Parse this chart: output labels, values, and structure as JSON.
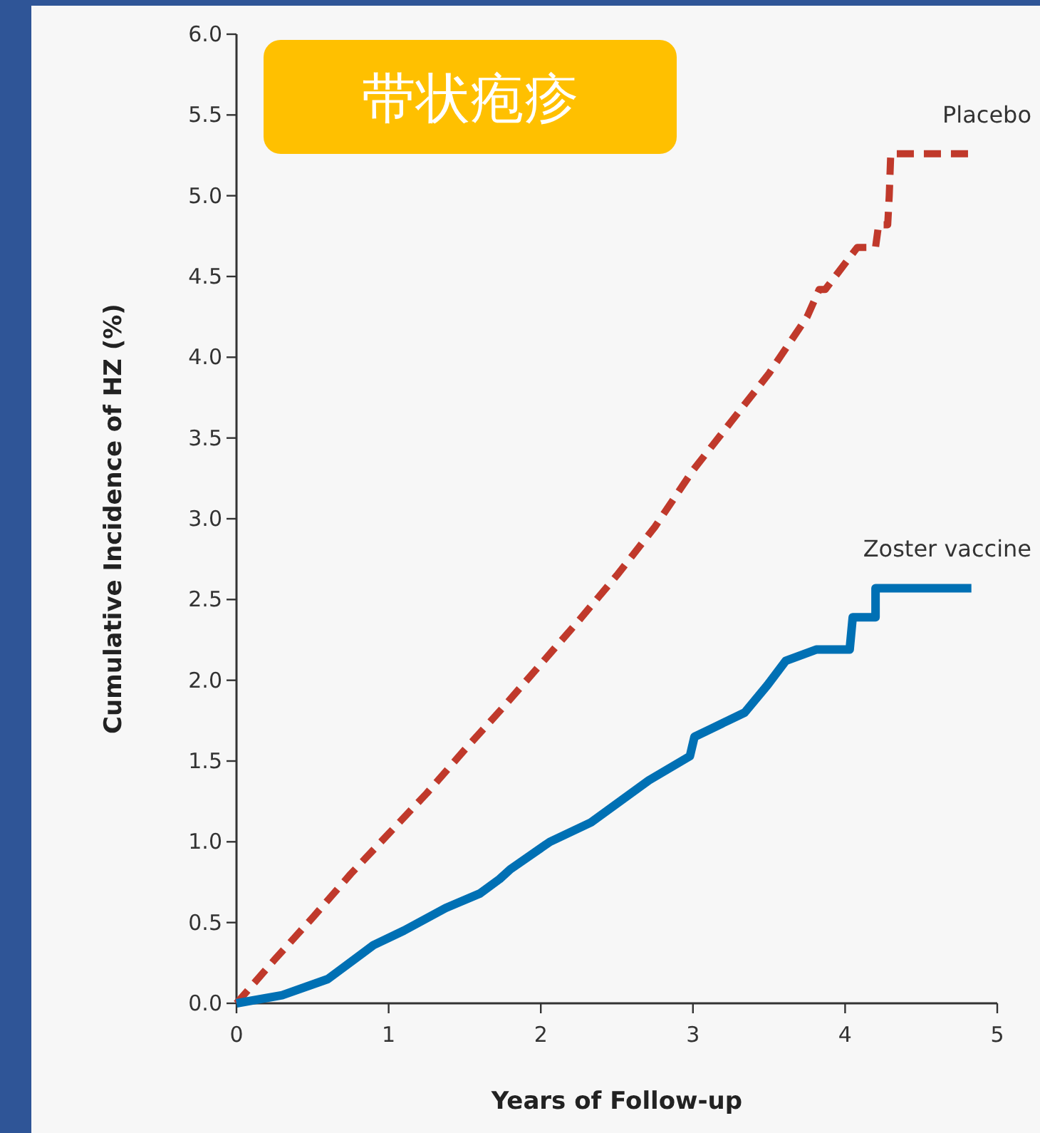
{
  "chart_data": {
    "type": "line",
    "title": "带状疱疹",
    "xlabel": "Years of Follow-up",
    "ylabel": "Cumulative Incidence of HZ (%)",
    "xlim": [
      0,
      5
    ],
    "ylim": [
      0,
      6
    ],
    "xticks": [
      0,
      1,
      2,
      3,
      4,
      5
    ],
    "yticks": [
      {
        "value": 0,
        "label": "0.0"
      },
      {
        "value": 0.5,
        "label": "0.5"
      },
      {
        "value": 1,
        "label": "1.0"
      },
      {
        "value": 1.5,
        "label": "1.5"
      },
      {
        "value": 2,
        "label": "2.0"
      },
      {
        "value": 2.5,
        "label": "2.5"
      },
      {
        "value": 3,
        "label": "3.0"
      },
      {
        "value": 3.5,
        "label": "3.5"
      },
      {
        "value": 4,
        "label": "4.0"
      },
      {
        "value": 4.5,
        "label": "4.5"
      },
      {
        "value": 5,
        "label": "5.0"
      },
      {
        "value": 5.5,
        "label": "5.5"
      },
      {
        "value": 6,
        "label": "6.0"
      }
    ],
    "series": [
      {
        "name": "Placebo",
        "color": "#c0392b",
        "line_style": "dashed",
        "x": [
          0,
          0.25,
          0.5,
          0.75,
          1,
          1.25,
          1.5,
          1.75,
          2,
          2.25,
          2.5,
          2.75,
          3,
          3.25,
          3.5,
          3.75,
          3.83,
          3.87,
          4.08,
          4.2,
          4.22,
          4.28,
          4.29,
          4.3,
          4.83
        ],
        "values": [
          0,
          0.27,
          0.53,
          0.8,
          1.05,
          1.3,
          1.57,
          1.83,
          2.1,
          2.37,
          2.65,
          2.95,
          3.3,
          3.6,
          3.9,
          4.25,
          4.42,
          4.42,
          4.68,
          4.68,
          4.82,
          4.82,
          5.0,
          5.26,
          5.26
        ]
      },
      {
        "name": "Zoster vaccine",
        "color": "#0070b4",
        "line_style": "solid",
        "x": [
          0,
          0.3,
          0.6,
          0.9,
          1.1,
          1.375,
          1.6,
          1.73,
          1.8,
          2.06,
          2.33,
          2.71,
          2.98,
          3.01,
          3.34,
          3.49,
          3.61,
          3.81,
          4.03,
          4.05,
          4.2,
          4.2,
          4.83
        ],
        "values": [
          0,
          0.05,
          0.15,
          0.36,
          0.45,
          0.59,
          0.68,
          0.77,
          0.83,
          1.0,
          1.12,
          1.38,
          1.53,
          1.65,
          1.8,
          1.97,
          2.12,
          2.19,
          2.19,
          2.39,
          2.39,
          2.57,
          2.57
        ]
      }
    ]
  }
}
